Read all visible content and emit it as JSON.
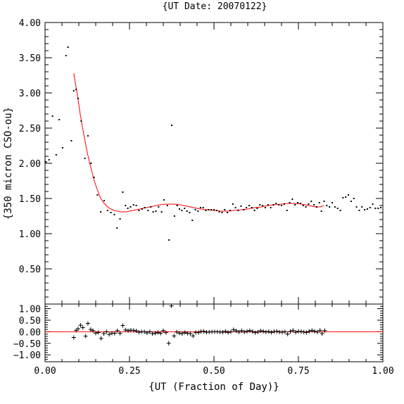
{
  "chart_data": [
    {
      "type": "scatter",
      "title": "{UT Date: 20070122}",
      "xlabel": "{UT (Fraction of Day)}",
      "ylabel": "{350 micron CSO-ou}",
      "xlim": [
        0,
        1
      ],
      "ylim": [
        0,
        4
      ],
      "xticks": [
        "0.00",
        "0.25",
        "0.50",
        "0.75",
        "1.00"
      ],
      "yticks": [
        "0.50",
        "1.00",
        "1.50",
        "2.00",
        "2.50",
        "3.00",
        "3.50",
        "4.00"
      ],
      "grid": false,
      "series": [
        {
          "marker": "dot",
          "color": "#000000",
          "points": [
            [
              0.003,
              2.02
            ],
            [
              0.012,
              2.05
            ],
            [
              0.022,
              2.67
            ],
            [
              0.033,
              2.12
            ],
            [
              0.042,
              2.62
            ],
            [
              0.052,
              2.22
            ],
            [
              0.062,
              3.53
            ],
            [
              0.068,
              3.65
            ],
            [
              0.078,
              2.32
            ],
            [
              0.085,
              3.03
            ],
            [
              0.092,
              3.05
            ],
            [
              0.098,
              2.92
            ],
            [
              0.107,
              2.6
            ],
            [
              0.118,
              2.07
            ],
            [
              0.127,
              2.39
            ],
            [
              0.136,
              2.0
            ],
            [
              0.145,
              1.8
            ],
            [
              0.155,
              1.55
            ],
            [
              0.165,
              1.31
            ],
            [
              0.175,
              1.47
            ],
            [
              0.185,
              1.33
            ],
            [
              0.195,
              1.3
            ],
            [
              0.205,
              1.27
            ],
            [
              0.213,
              1.08
            ],
            [
              0.222,
              1.21
            ],
            [
              0.23,
              1.59
            ],
            [
              0.238,
              1.4
            ],
            [
              0.245,
              1.36
            ],
            [
              0.253,
              1.38
            ],
            [
              0.262,
              1.41
            ],
            [
              0.27,
              1.4
            ],
            [
              0.278,
              1.33
            ],
            [
              0.287,
              1.35
            ],
            [
              0.295,
              1.37
            ],
            [
              0.305,
              1.33
            ],
            [
              0.313,
              1.38
            ],
            [
              0.32,
              1.31
            ],
            [
              0.328,
              1.32
            ],
            [
              0.336,
              1.38
            ],
            [
              0.345,
              1.31
            ],
            [
              0.352,
              1.48
            ],
            [
              0.362,
              1.4
            ],
            [
              0.367,
              0.91
            ],
            [
              0.375,
              2.54
            ],
            [
              0.383,
              1.25
            ],
            [
              0.391,
              1.4
            ],
            [
              0.398,
              1.35
            ],
            [
              0.405,
              1.33
            ],
            [
              0.413,
              1.36
            ],
            [
              0.42,
              1.32
            ],
            [
              0.428,
              1.3
            ],
            [
              0.436,
              1.19
            ],
            [
              0.445,
              1.34
            ],
            [
              0.453,
              1.32
            ],
            [
              0.46,
              1.37
            ],
            [
              0.468,
              1.37
            ],
            [
              0.476,
              1.33
            ],
            [
              0.484,
              1.34
            ],
            [
              0.492,
              1.34
            ],
            [
              0.5,
              1.34
            ],
            [
              0.508,
              1.33
            ],
            [
              0.516,
              1.31
            ],
            [
              0.524,
              1.3
            ],
            [
              0.532,
              1.34
            ],
            [
              0.54,
              1.3
            ],
            [
              0.548,
              1.33
            ],
            [
              0.556,
              1.42
            ],
            [
              0.564,
              1.37
            ],
            [
              0.572,
              1.33
            ],
            [
              0.58,
              1.39
            ],
            [
              0.588,
              1.34
            ],
            [
              0.596,
              1.37
            ],
            [
              0.604,
              1.4
            ],
            [
              0.612,
              1.37
            ],
            [
              0.62,
              1.33
            ],
            [
              0.628,
              1.36
            ],
            [
              0.636,
              1.41
            ],
            [
              0.644,
              1.4
            ],
            [
              0.652,
              1.37
            ],
            [
              0.66,
              1.41
            ],
            [
              0.668,
              1.37
            ],
            [
              0.676,
              1.41
            ],
            [
              0.684,
              1.43
            ],
            [
              0.692,
              1.41
            ],
            [
              0.7,
              1.4
            ],
            [
              0.708,
              1.42
            ],
            [
              0.716,
              1.33
            ],
            [
              0.724,
              1.44
            ],
            [
              0.732,
              1.49
            ],
            [
              0.74,
              1.41
            ],
            [
              0.748,
              1.44
            ],
            [
              0.756,
              1.43
            ],
            [
              0.764,
              1.4
            ],
            [
              0.772,
              1.38
            ],
            [
              0.78,
              1.42
            ],
            [
              0.788,
              1.46
            ],
            [
              0.796,
              1.41
            ],
            [
              0.804,
              1.38
            ],
            [
              0.812,
              1.44
            ],
            [
              0.818,
              1.32
            ],
            [
              0.826,
              1.46
            ],
            [
              0.834,
              1.4
            ],
            [
              0.842,
              1.38
            ],
            [
              0.85,
              1.44
            ],
            [
              0.858,
              1.38
            ],
            [
              0.866,
              1.36
            ],
            [
              0.874,
              1.33
            ],
            [
              0.882,
              1.51
            ],
            [
              0.89,
              1.52
            ],
            [
              0.898,
              1.55
            ],
            [
              0.906,
              1.46
            ],
            [
              0.914,
              1.5
            ],
            [
              0.922,
              1.38
            ],
            [
              0.93,
              1.33
            ],
            [
              0.938,
              1.38
            ],
            [
              0.946,
              1.34
            ],
            [
              0.954,
              1.35
            ],
            [
              0.962,
              1.37
            ],
            [
              0.97,
              1.42
            ],
            [
              0.978,
              1.36
            ],
            [
              0.986,
              1.36
            ],
            [
              0.994,
              1.37
            ]
          ]
        },
        {
          "marker": "line",
          "color": "#ff0000",
          "points": [
            [
              0.085,
              3.28
            ],
            [
              0.095,
              2.99
            ],
            [
              0.105,
              2.67
            ],
            [
              0.115,
              2.4
            ],
            [
              0.125,
              2.15
            ],
            [
              0.135,
              1.95
            ],
            [
              0.145,
              1.76
            ],
            [
              0.155,
              1.62
            ],
            [
              0.165,
              1.5
            ],
            [
              0.175,
              1.43
            ],
            [
              0.185,
              1.38
            ],
            [
              0.195,
              1.35
            ],
            [
              0.205,
              1.33
            ],
            [
              0.215,
              1.32
            ],
            [
              0.225,
              1.31
            ],
            [
              0.24,
              1.31
            ],
            [
              0.26,
              1.33
            ],
            [
              0.28,
              1.35
            ],
            [
              0.3,
              1.37
            ],
            [
              0.32,
              1.39
            ],
            [
              0.34,
              1.41
            ],
            [
              0.36,
              1.42
            ],
            [
              0.38,
              1.42
            ],
            [
              0.4,
              1.41
            ],
            [
              0.42,
              1.39
            ],
            [
              0.44,
              1.37
            ],
            [
              0.46,
              1.35
            ],
            [
              0.48,
              1.34
            ],
            [
              0.5,
              1.33
            ],
            [
              0.52,
              1.32
            ],
            [
              0.54,
              1.32
            ],
            [
              0.56,
              1.33
            ],
            [
              0.58,
              1.34
            ],
            [
              0.6,
              1.35
            ],
            [
              0.62,
              1.37
            ],
            [
              0.64,
              1.38
            ],
            [
              0.66,
              1.4
            ],
            [
              0.68,
              1.41
            ],
            [
              0.7,
              1.42
            ],
            [
              0.72,
              1.43
            ],
            [
              0.74,
              1.43
            ],
            [
              0.76,
              1.42
            ],
            [
              0.78,
              1.4
            ],
            [
              0.8,
              1.38
            ],
            [
              0.815,
              1.38
            ],
            [
              0.825,
              1.4
            ]
          ]
        }
      ]
    },
    {
      "type": "scatter",
      "xlim": [
        0,
        1
      ],
      "ylim": [
        -1.3,
        1.2
      ],
      "yticks": [
        "1.00",
        "0.50",
        "0.00",
        "−0.50",
        "−1.00"
      ],
      "grid": false,
      "reference_line": {
        "y": 0,
        "color": "#ff0000"
      },
      "series": [
        {
          "marker": "plus",
          "color": "#000000",
          "points": [
            [
              0.085,
              -0.25
            ],
            [
              0.092,
              0.06
            ],
            [
              0.098,
              0.13
            ],
            [
              0.105,
              0.28
            ],
            [
              0.112,
              0.18
            ],
            [
              0.12,
              -0.19
            ],
            [
              0.127,
              0.36
            ],
            [
              0.135,
              0.1
            ],
            [
              0.142,
              0.05
            ],
            [
              0.15,
              -0.06
            ],
            [
              0.158,
              -0.03
            ],
            [
              0.166,
              -0.29
            ],
            [
              0.174,
              -0.08
            ],
            [
              0.182,
              0.0
            ],
            [
              0.19,
              -0.12
            ],
            [
              0.198,
              -0.06
            ],
            [
              0.206,
              -0.07
            ],
            [
              0.214,
              0.05
            ],
            [
              0.222,
              -0.07
            ],
            [
              0.23,
              0.27
            ],
            [
              0.238,
              0.08
            ],
            [
              0.246,
              0.05
            ],
            [
              0.254,
              0.07
            ],
            [
              0.262,
              0.06
            ],
            [
              0.27,
              0.04
            ],
            [
              0.278,
              -0.02
            ],
            [
              0.286,
              0.0
            ],
            [
              0.294,
              0.0
            ],
            [
              0.302,
              -0.05
            ],
            [
              0.31,
              0.0
            ],
            [
              0.318,
              -0.08
            ],
            [
              0.326,
              -0.06
            ],
            [
              0.334,
              -0.03
            ],
            [
              0.342,
              -0.07
            ],
            [
              0.35,
              0.05
            ],
            [
              0.358,
              -0.04
            ],
            [
              0.366,
              -0.5
            ],
            [
              0.374,
              1.12
            ],
            [
              0.382,
              -0.18
            ],
            [
              0.39,
              -0.01
            ],
            [
              0.398,
              -0.06
            ],
            [
              0.406,
              -0.08
            ],
            [
              0.414,
              -0.03
            ],
            [
              0.422,
              -0.07
            ],
            [
              0.43,
              -0.08
            ],
            [
              0.438,
              -0.18
            ],
            [
              0.446,
              -0.03
            ],
            [
              0.454,
              -0.04
            ],
            [
              0.462,
              0.02
            ],
            [
              0.47,
              0.02
            ],
            [
              0.478,
              -0.02
            ],
            [
              0.486,
              -0.01
            ],
            [
              0.494,
              0.0
            ],
            [
              0.502,
              0.0
            ],
            [
              0.51,
              0.0
            ],
            [
              0.518,
              -0.01
            ],
            [
              0.526,
              -0.02
            ],
            [
              0.534,
              0.02
            ],
            [
              0.542,
              -0.03
            ],
            [
              0.55,
              0.0
            ],
            [
              0.558,
              0.09
            ],
            [
              0.566,
              0.04
            ],
            [
              0.574,
              -0.01
            ],
            [
              0.582,
              0.05
            ],
            [
              0.59,
              -0.01
            ],
            [
              0.598,
              0.02
            ],
            [
              0.606,
              0.05
            ],
            [
              0.614,
              0.01
            ],
            [
              0.622,
              -0.04
            ],
            [
              0.63,
              -0.01
            ],
            [
              0.638,
              0.04
            ],
            [
              0.646,
              0.02
            ],
            [
              0.654,
              -0.01
            ],
            [
              0.662,
              0.01
            ],
            [
              0.67,
              -0.03
            ],
            [
              0.678,
              0.01
            ],
            [
              0.686,
              0.02
            ],
            [
              0.694,
              -0.01
            ],
            [
              0.702,
              -0.02
            ],
            [
              0.71,
              0.0
            ],
            [
              0.718,
              -0.1
            ],
            [
              0.726,
              0.01
            ],
            [
              0.734,
              0.06
            ],
            [
              0.742,
              -0.02
            ],
            [
              0.75,
              0.02
            ],
            [
              0.758,
              0.01
            ],
            [
              0.766,
              -0.01
            ],
            [
              0.774,
              -0.03
            ],
            [
              0.782,
              0.02
            ],
            [
              0.79,
              0.06
            ],
            [
              0.798,
              0.02
            ],
            [
              0.806,
              -0.01
            ],
            [
              0.814,
              0.06
            ],
            [
              0.82,
              -0.08
            ],
            [
              0.828,
              0.05
            ]
          ]
        }
      ]
    }
  ]
}
